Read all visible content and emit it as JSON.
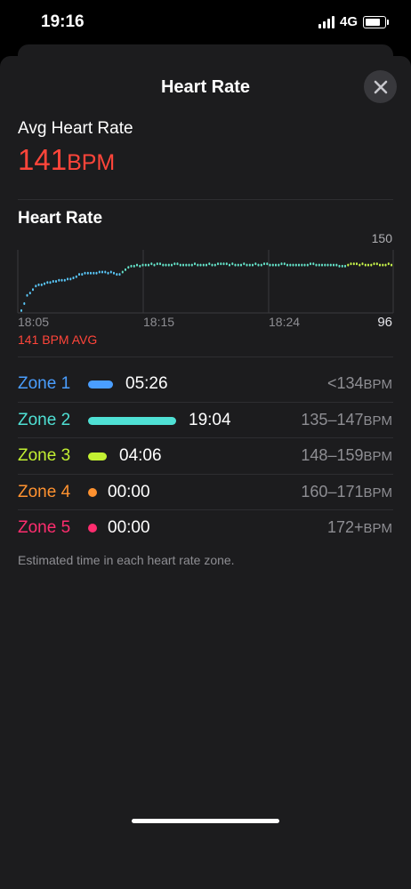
{
  "status": {
    "time": "19:16",
    "network": "4G"
  },
  "sheet": {
    "title": "Heart Rate"
  },
  "avg": {
    "label": "Avg Heart Rate",
    "value": "141",
    "unit": "BPM"
  },
  "chart": {
    "title": "Heart Rate",
    "ymax_label": "150",
    "ymin_label": "96",
    "x_labels": [
      "18:05",
      "18:15",
      "18:24"
    ],
    "avg_note": "141 BPM AVG"
  },
  "chart_data": {
    "type": "scatter",
    "title": "Heart Rate",
    "ylim": [
      96,
      150
    ],
    "x_ticks": [
      "18:05",
      "18:15",
      "18:24"
    ],
    "grid": true,
    "series": [
      {
        "color": "#5ac8fa",
        "values": [
          98,
          104,
          111,
          113,
          116,
          119,
          120,
          120,
          121,
          122,
          122,
          123,
          123,
          124,
          124,
          124,
          125,
          125,
          126,
          127,
          129,
          129,
          130,
          130,
          130,
          130,
          130,
          131,
          131,
          131,
          130,
          131,
          130,
          129,
          129
        ]
      },
      {
        "color": "#64e3c9",
        "values": [
          131,
          133,
          135,
          136,
          136,
          137,
          136,
          137,
          137,
          137,
          138,
          137,
          138,
          138,
          137,
          137,
          137,
          137,
          138,
          138,
          137,
          137,
          137,
          137,
          137,
          138,
          137,
          137,
          137,
          137,
          138,
          137,
          137,
          138,
          138,
          138,
          138,
          137,
          138,
          137,
          137,
          137,
          138,
          137,
          137,
          137,
          138,
          137,
          137,
          138,
          138,
          137,
          137,
          137,
          137,
          138,
          138,
          137,
          137,
          137,
          137,
          137,
          137,
          137,
          137,
          138,
          138,
          137,
          137,
          137,
          137,
          137,
          137,
          137,
          137,
          136,
          136,
          136
        ]
      },
      {
        "color": "#c8f54a",
        "values": [
          137,
          138,
          138,
          138,
          137,
          138,
          137,
          137,
          137,
          138,
          138,
          137,
          137,
          137,
          138,
          137
        ]
      }
    ]
  },
  "zones": [
    {
      "name": "Zone 1",
      "time": "05:26",
      "range": "<134",
      "unit": "BPM",
      "color": "#4a9eff",
      "fraction": 0.19
    },
    {
      "name": "Zone 2",
      "time": "19:04",
      "range": "135–147",
      "unit": "BPM",
      "color": "#4fe0d4",
      "fraction": 0.67
    },
    {
      "name": "Zone 3",
      "time": "04:06",
      "range": "148–159",
      "unit": "BPM",
      "color": "#c2f032",
      "fraction": 0.14
    },
    {
      "name": "Zone 4",
      "time": "00:00",
      "range": "160–171",
      "unit": "BPM",
      "color": "#ff9230",
      "fraction": 0
    },
    {
      "name": "Zone 5",
      "time": "00:00",
      "range": "172+",
      "unit": "BPM",
      "color": "#ff2d6f",
      "fraction": 0
    }
  ],
  "footnote": "Estimated time in each heart rate zone."
}
